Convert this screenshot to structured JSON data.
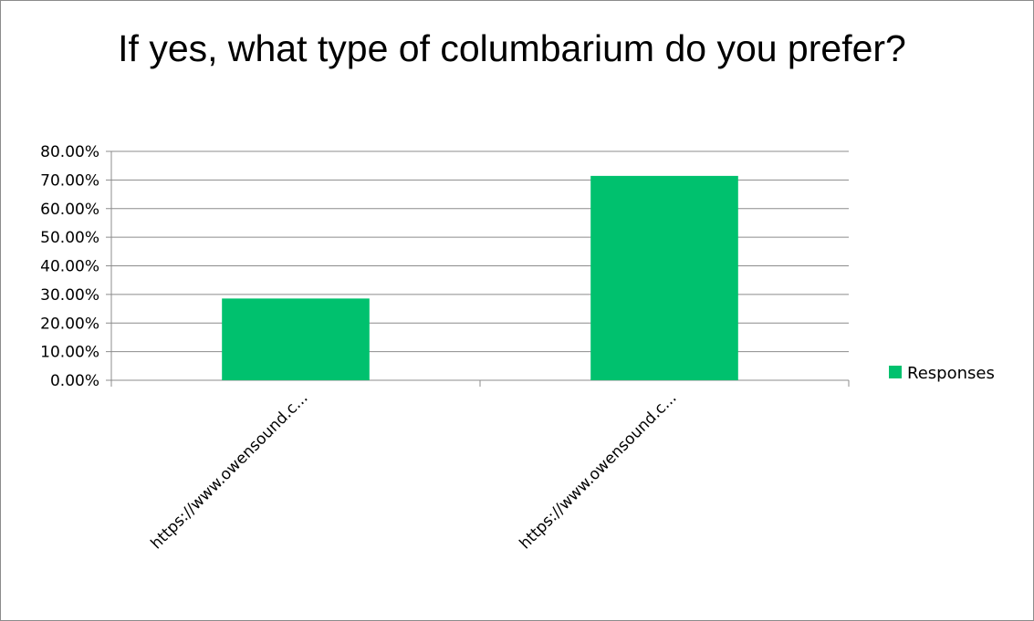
{
  "chart_data": {
    "type": "bar",
    "title": "If yes, what type of columbarium do you prefer?",
    "categories": [
      "https://www.owensound.c...",
      "https://www.owensound.c..."
    ],
    "series": [
      {
        "name": "Responses",
        "values": [
          0.2857,
          0.7143
        ],
        "color": "#00c16e"
      }
    ],
    "ylim": [
      0,
      0.8
    ],
    "yticks": [
      "0.00%",
      "10.00%",
      "20.00%",
      "30.00%",
      "40.00%",
      "50.00%",
      "60.00%",
      "70.00%",
      "80.00%"
    ],
    "grid": true,
    "legend_position": "right"
  }
}
